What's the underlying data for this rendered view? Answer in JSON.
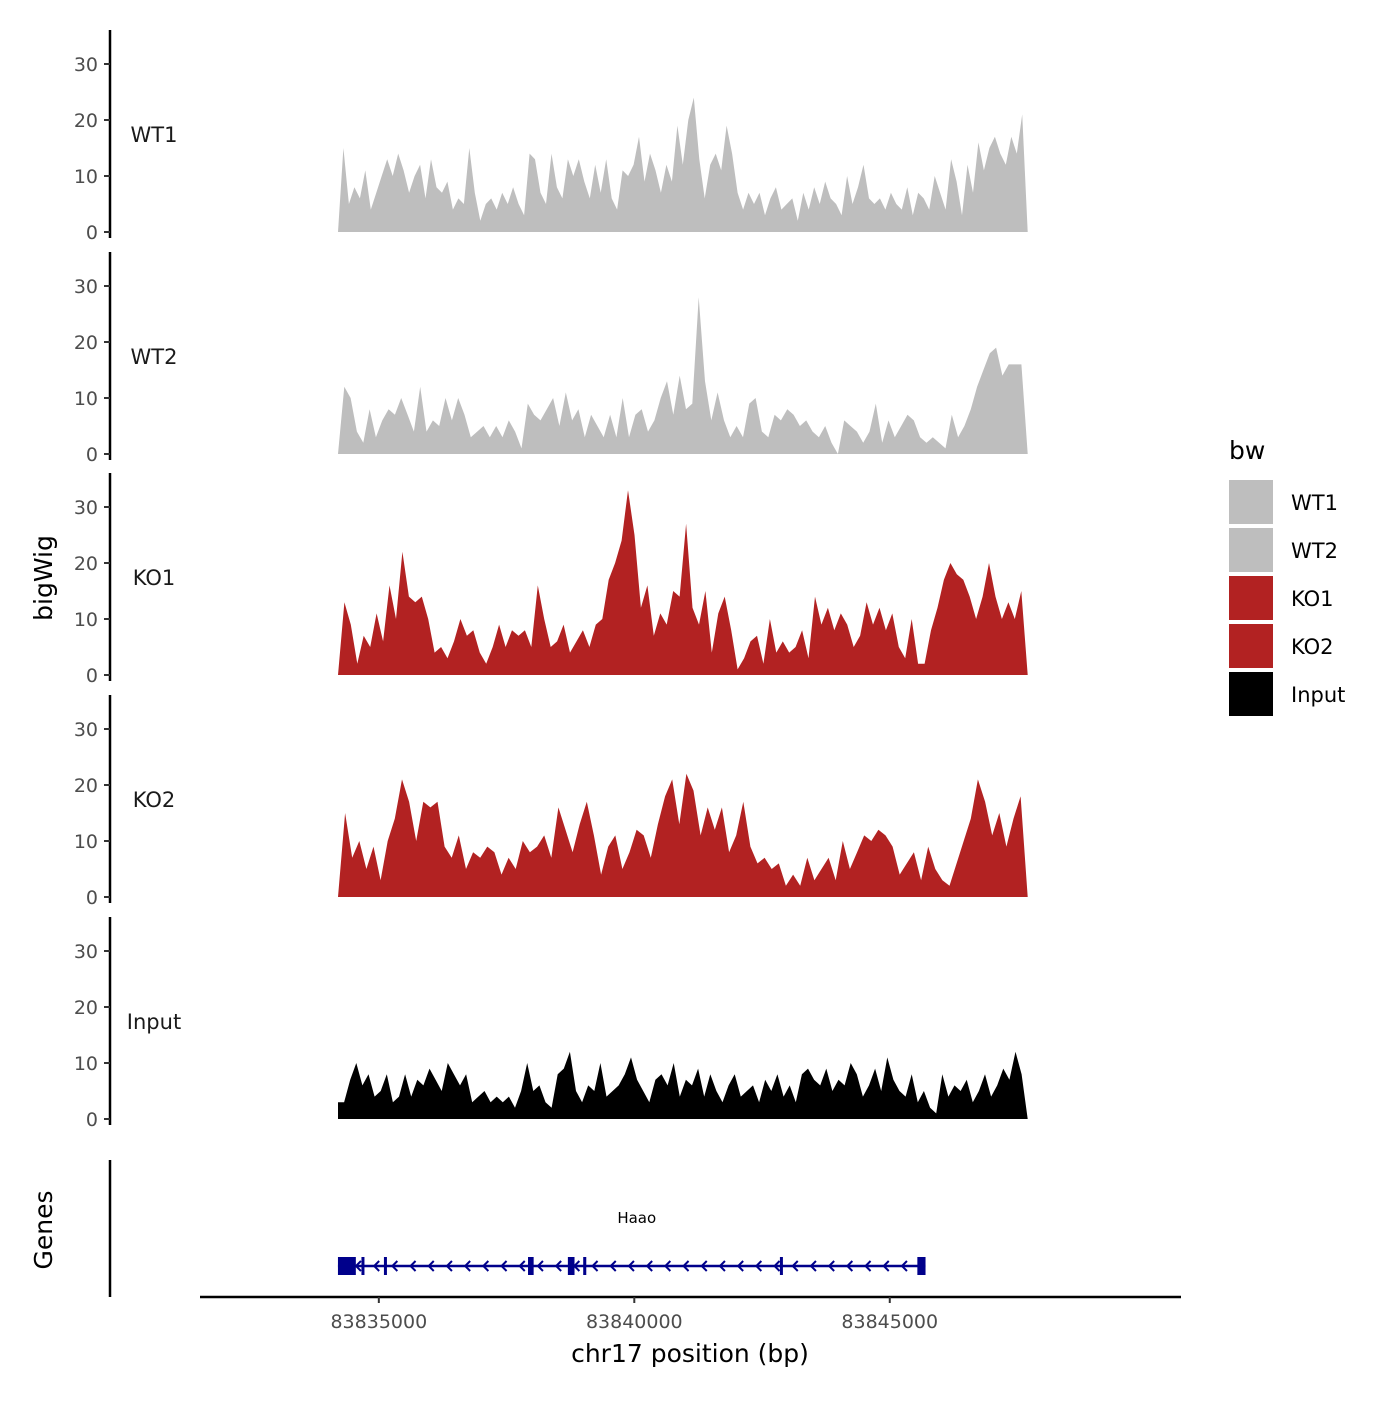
{
  "chart_data": {
    "type": "area",
    "xlabel": "chr17 position (bp)",
    "ylabel_tracks": "bigWig",
    "ylabel_genes": "Genes",
    "x_ticks": [
      83835000,
      83840000,
      83845000
    ],
    "x_tick_labels": [
      "83835000",
      "83840000",
      "83845000"
    ],
    "xlim": [
      83831500,
      83850700
    ],
    "y_ticks": [
      0,
      10,
      20,
      30
    ],
    "y_tick_labels": [
      "0",
      "10",
      "20",
      "30"
    ],
    "ylim": [
      0,
      35
    ],
    "series_x_range": [
      83834200,
      83847700
    ],
    "legend": {
      "title": "bw",
      "entries": [
        {
          "label": "WT1",
          "color": "#bebebe"
        },
        {
          "label": "WT2",
          "color": "#bebebe"
        },
        {
          "label": "KO1",
          "color": "#b22222"
        },
        {
          "label": "KO2",
          "color": "#b22222"
        },
        {
          "label": "Input",
          "color": "#000000"
        }
      ]
    },
    "series": [
      {
        "name": "WT1",
        "color": "#bebebe",
        "values": [
          0,
          15,
          5,
          8,
          6,
          11,
          4,
          7,
          10,
          13,
          10,
          14,
          11,
          7,
          10,
          12,
          6,
          13,
          8,
          7,
          9,
          4,
          6,
          5,
          15,
          7,
          2,
          5,
          6,
          4,
          7,
          5,
          8,
          5,
          3,
          14,
          13,
          7,
          5,
          14,
          8,
          6,
          13,
          10,
          13,
          9,
          6,
          12,
          7,
          13,
          6,
          4,
          11,
          10,
          12,
          17,
          9,
          14,
          11,
          7,
          12,
          9,
          19,
          12,
          20,
          24,
          13,
          6,
          12,
          14,
          11,
          19,
          14,
          7,
          4,
          7,
          5,
          7,
          3,
          6,
          8,
          4,
          5,
          6,
          2,
          7,
          4,
          8,
          5,
          9,
          6,
          5,
          3,
          10,
          5,
          8,
          12,
          6,
          5,
          6,
          4,
          7,
          5,
          4,
          8,
          3,
          7,
          6,
          4,
          10,
          7,
          4,
          13,
          9,
          3,
          12,
          7,
          16,
          11,
          15,
          17,
          14,
          12,
          17,
          14,
          21,
          0
        ]
      },
      {
        "name": "WT2",
        "color": "#bebebe",
        "values": [
          0,
          12,
          10,
          4,
          2,
          8,
          3,
          6,
          8,
          7,
          10,
          7,
          4,
          12,
          4,
          6,
          5,
          10,
          6,
          10,
          7,
          3,
          4,
          5,
          3,
          5,
          3,
          6,
          4,
          1,
          9,
          7,
          6,
          8,
          10,
          5,
          11,
          6,
          8,
          3,
          7,
          5,
          3,
          7,
          3,
          10,
          3,
          7,
          8,
          4,
          6,
          10,
          13,
          7,
          14,
          8,
          9,
          28,
          13,
          6,
          11,
          6,
          3,
          5,
          3,
          9,
          10,
          4,
          3,
          7,
          6,
          8,
          7,
          5,
          6,
          4,
          3,
          5,
          2,
          0,
          6,
          5,
          4,
          2,
          4,
          9,
          2,
          6,
          3,
          5,
          7,
          6,
          3,
          2,
          3,
          2,
          1,
          7,
          3,
          5,
          8,
          12,
          15,
          18,
          19,
          14,
          16,
          16,
          16,
          0
        ]
      },
      {
        "name": "KO1",
        "color": "#b22222",
        "values": [
          0,
          13,
          9,
          2,
          7,
          5,
          11,
          6,
          16,
          10,
          22,
          14,
          13,
          14,
          10,
          4,
          5,
          3,
          6,
          10,
          7,
          8,
          4,
          2,
          5,
          9,
          5,
          8,
          7,
          8,
          5,
          16,
          10,
          5,
          6,
          9,
          4,
          6,
          8,
          5,
          9,
          10,
          17,
          20,
          24,
          33,
          25,
          12,
          16,
          7,
          11,
          9,
          15,
          14,
          27,
          12,
          9,
          15,
          4,
          11,
          14,
          8,
          1,
          3,
          6,
          7,
          2,
          10,
          4,
          6,
          4,
          5,
          8,
          3,
          14,
          9,
          12,
          8,
          11,
          9,
          5,
          7,
          13,
          9,
          12,
          8,
          11,
          5,
          3,
          10,
          2,
          2,
          8,
          12,
          17,
          20,
          18,
          17,
          14,
          10,
          14,
          20,
          14,
          10,
          13,
          10,
          15,
          0
        ]
      },
      {
        "name": "KO2",
        "color": "#b22222",
        "values": [
          0,
          15,
          7,
          10,
          5,
          9,
          3,
          10,
          14,
          21,
          17,
          10,
          17,
          16,
          17,
          9,
          7,
          11,
          5,
          8,
          7,
          9,
          8,
          4,
          7,
          5,
          10,
          8,
          9,
          11,
          7,
          16,
          12,
          8,
          13,
          17,
          11,
          4,
          9,
          11,
          5,
          8,
          12,
          11,
          7,
          13,
          18,
          21,
          13,
          22,
          19,
          11,
          16,
          12,
          16,
          8,
          11,
          17,
          9,
          6,
          7,
          5,
          6,
          2,
          4,
          2,
          7,
          3,
          5,
          7,
          3,
          10,
          5,
          8,
          11,
          10,
          12,
          11,
          9,
          4,
          6,
          8,
          3,
          9,
          5,
          3,
          2,
          6,
          10,
          14,
          21,
          17,
          11,
          15,
          9,
          14,
          18,
          0
        ]
      },
      {
        "name": "Input",
        "color": "#000000",
        "values": [
          3,
          3,
          7,
          10,
          6,
          8,
          4,
          5,
          8,
          3,
          4,
          8,
          4,
          7,
          6,
          9,
          7,
          5,
          10,
          8,
          6,
          8,
          3,
          4,
          5,
          3,
          4,
          3,
          4,
          2,
          5,
          10,
          5,
          6,
          3,
          2,
          8,
          9,
          12,
          5,
          3,
          6,
          5,
          10,
          4,
          5,
          6,
          8,
          11,
          7,
          5,
          3,
          7,
          8,
          6,
          10,
          4,
          7,
          6,
          9,
          4,
          8,
          5,
          3,
          6,
          8,
          4,
          5,
          6,
          3,
          7,
          5,
          8,
          4,
          6,
          3,
          8,
          9,
          7,
          6,
          9,
          5,
          7,
          6,
          10,
          8,
          4,
          6,
          9,
          5,
          11,
          7,
          5,
          4,
          8,
          3,
          5,
          2,
          1,
          8,
          4,
          6,
          5,
          7,
          3,
          5,
          8,
          4,
          6,
          9,
          7,
          12,
          8,
          0
        ]
      }
    ],
    "genes": [
      {
        "name": "Haao",
        "strand": "-",
        "start": 83834200,
        "end": 83845700,
        "exons": [
          [
            83834200,
            83834550
          ],
          [
            83834660,
            83834700
          ],
          [
            83835100,
            83835140
          ],
          [
            83837920,
            83838030
          ],
          [
            83838700,
            83838830
          ],
          [
            83839000,
            83839060
          ],
          [
            83842850,
            83842900
          ],
          [
            83845540,
            83845700
          ]
        ]
      }
    ]
  }
}
